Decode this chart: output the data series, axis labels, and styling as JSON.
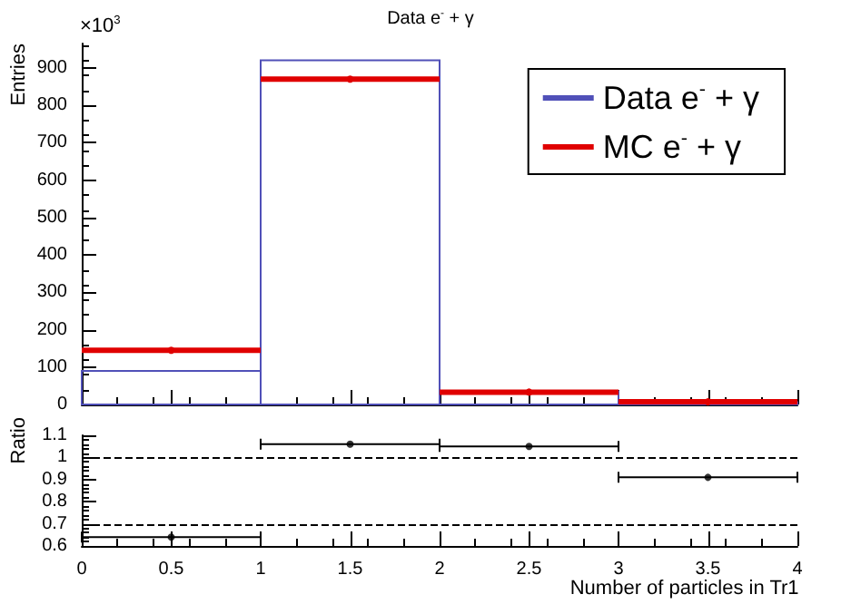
{
  "chart_data": [
    {
      "type": "histogram",
      "title": "Data e$^{-}$ + γ",
      "ylabel": "Entries",
      "annotations": [
        "×10$^{3}$"
      ],
      "bins": [
        0,
        1,
        2,
        3,
        4
      ],
      "series": [
        {
          "name": "Data e$^{-}$ + γ",
          "color": "#5050b8",
          "values": [
            90,
            920,
            35,
            6
          ]
        },
        {
          "name": "MC e$^{-}$ + γ",
          "type": "scatter",
          "color": "#e00000",
          "x": [
            0.5,
            1.5,
            2.5,
            3.5
          ],
          "xerrors": [
            0.5,
            0.5,
            0.5,
            0.5
          ],
          "marker": "circle",
          "values": [
            145,
            870,
            33,
            7
          ]
        }
      ],
      "xlim": [
        0,
        4
      ],
      "xticks": [
        0,
        0.5,
        1,
        1.5,
        2,
        2.5,
        3,
        3.5,
        4
      ],
      "ylim": [
        0,
        965
      ],
      "yticks": [
        0,
        100,
        200,
        300,
        400,
        500,
        600,
        700,
        800,
        900
      ],
      "tick_labels": "y",
      "legend": "top right",
      "grid": false
    },
    {
      "type": "scatter",
      "xlabel": "Number of particles in Tr1",
      "ylabel": "Ratio",
      "x": [
        0.5,
        1.5,
        2.5,
        3.5
      ],
      "values": [
        0.64,
        1.06,
        1.05,
        0.91
      ],
      "xerrors": [
        0.5,
        0.5,
        0.5,
        0.5
      ],
      "color": "#000000",
      "marker": "circle",
      "xlim": [
        0,
        4
      ],
      "xticks": [
        0,
        0.5,
        1,
        1.5,
        2,
        2.5,
        3,
        3.5,
        4
      ],
      "ylim": [
        0.6,
        1.1
      ],
      "yticks": [
        0.6,
        0.7,
        0.8,
        0.9,
        1,
        1.1
      ],
      "ref_lines": [
        {
          "axis": "y",
          "value": 1,
          "line_style": "dashed"
        },
        {
          "axis": "y",
          "value": 0.7,
          "line_style": "dashed"
        }
      ],
      "grid": false
    }
  ]
}
